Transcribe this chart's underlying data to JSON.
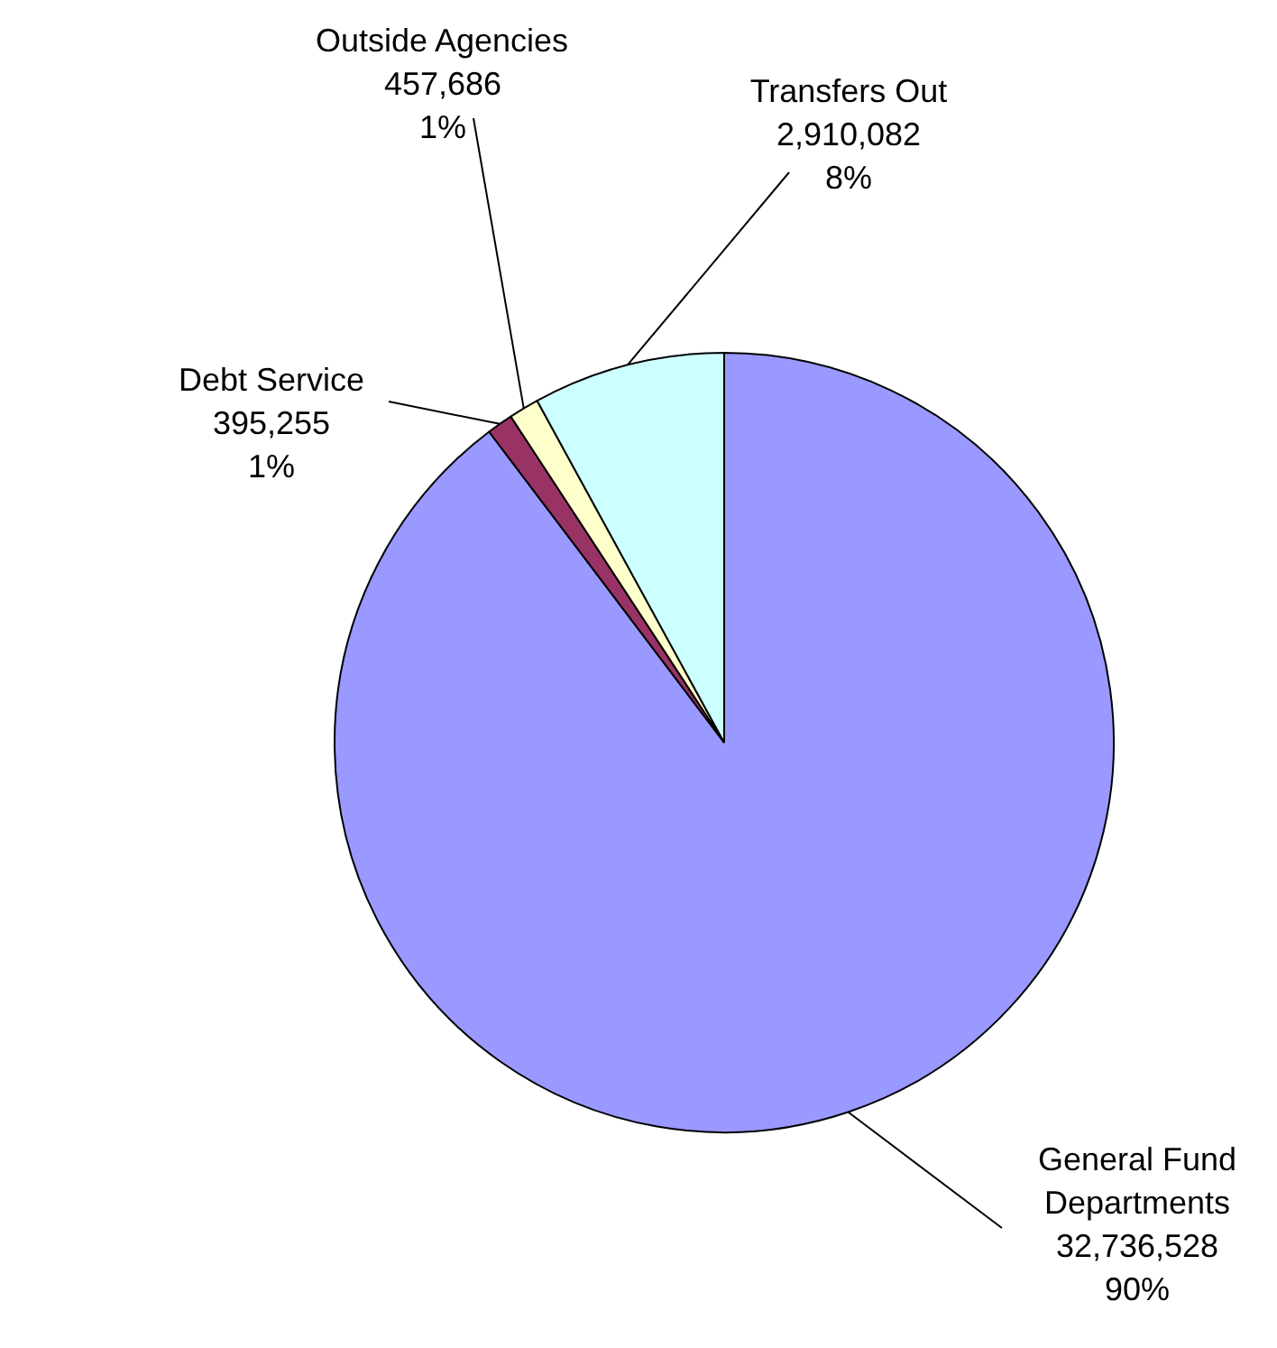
{
  "chart_data": {
    "type": "pie",
    "categories": [
      "General Fund Departments",
      "Debt Service",
      "Outside Agencies",
      "Transfers Out"
    ],
    "values": [
      32736528,
      395255,
      457686,
      2910082
    ],
    "colors": [
      "#9999ff",
      "#993366",
      "#ffffcc",
      "#ccffff"
    ],
    "value_labels": [
      "32,736,528\n90%",
      "395,255\n1%",
      "457,686\n1%",
      "2,910,082\n8%"
    ]
  }
}
